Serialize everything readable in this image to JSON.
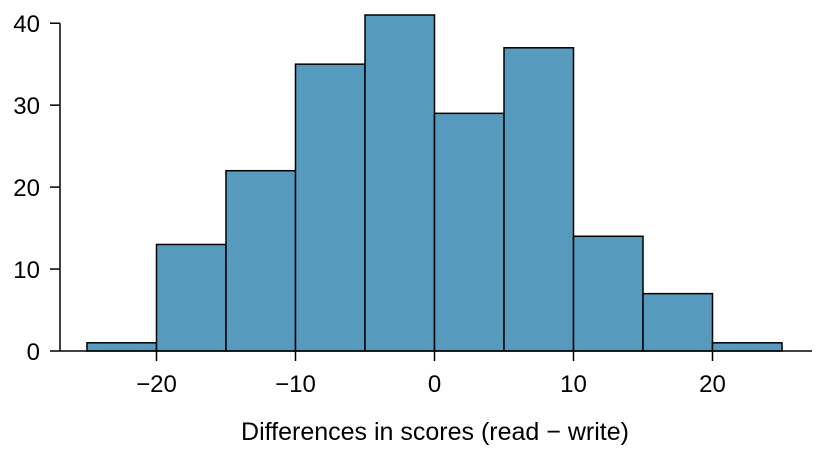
{
  "chart_data": {
    "type": "bar",
    "bins": [
      {
        "start": -25,
        "end": -20,
        "count": 1
      },
      {
        "start": -20,
        "end": -15,
        "count": 13
      },
      {
        "start": -15,
        "end": -10,
        "count": 22
      },
      {
        "start": -10,
        "end": -5,
        "count": 35
      },
      {
        "start": -5,
        "end": 0,
        "count": 41
      },
      {
        "start": 0,
        "end": 5,
        "count": 29
      },
      {
        "start": 5,
        "end": 10,
        "count": 37
      },
      {
        "start": 10,
        "end": 15,
        "count": 14
      },
      {
        "start": 15,
        "end": 20,
        "count": 7
      },
      {
        "start": 20,
        "end": 25,
        "count": 1
      }
    ],
    "xlabel": "Differences in scores (read − write)",
    "ylabel": "",
    "xlim": [
      -25,
      25
    ],
    "ylim": [
      0,
      41
    ],
    "xticks": [
      -20,
      -10,
      0,
      10,
      20
    ],
    "xtick_labels": [
      "−20",
      "−10",
      "0",
      "10",
      "20"
    ],
    "yticks": [
      0,
      10,
      20,
      30,
      40
    ],
    "ytick_labels": [
      "0",
      "10",
      "20",
      "30",
      "40"
    ],
    "bar_color": "#569BBD",
    "edge_color": "#000000",
    "grid": false,
    "legend": "none"
  }
}
